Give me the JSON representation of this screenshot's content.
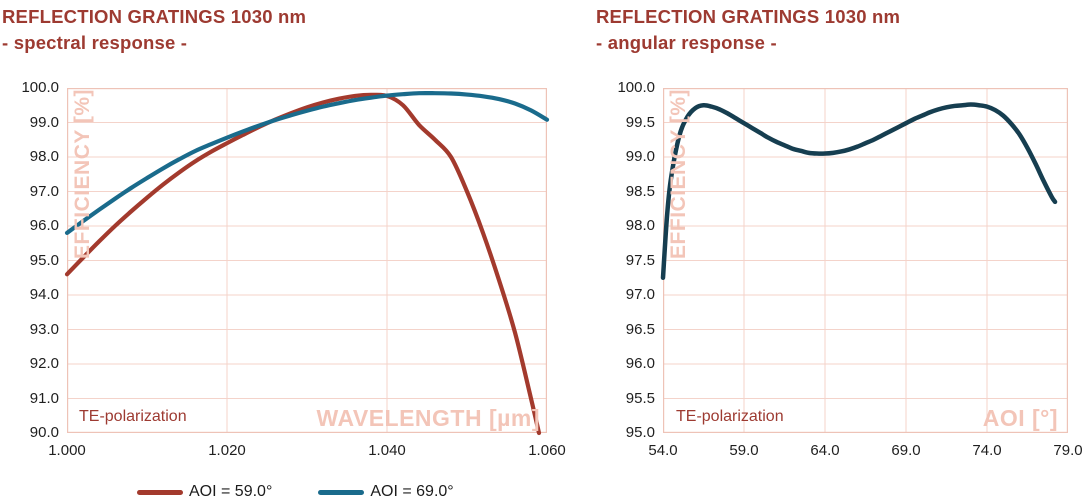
{
  "colors": {
    "background": "#ffffff",
    "title_text": "#9d3a31",
    "axis_tick_text": "#1f1f1f",
    "grid": "#f4d3ca",
    "plot_border": "#eec3b7",
    "watermark_text": "#f3c5b8",
    "annotation_text": "#9d3a31",
    "series_red": "#a33a2d",
    "series_teal": "#1a6b8c",
    "series_navy": "#163e50"
  },
  "chart_data": [
    {
      "type": "line",
      "title": "REFLECTION GRATINGS 1030 nm",
      "subtitle": "- spectral response -",
      "xlabel": "WAVELENGTH [µm]",
      "ylabel": "EFFICIENCY [%]",
      "annotation": "TE-polarization",
      "grid": true,
      "legend_position": "bottom",
      "xlim": [
        1.0,
        1.06
      ],
      "ylim": [
        90.0,
        100.0
      ],
      "xticks": [
        1.0,
        1.02,
        1.04,
        1.06
      ],
      "xtick_labels": [
        "1.000",
        "1.020",
        "1.040",
        "1.060"
      ],
      "yticks": [
        100.0,
        99.0,
        98.0,
        97.0,
        96.0,
        95.0,
        94.0,
        93.0,
        92.0,
        91.0,
        90.0
      ],
      "ytick_labels": [
        "100.0",
        "99.0",
        "98.0",
        "97.0",
        "96.0",
        "95.0",
        "94.0",
        "93.0",
        "92.0",
        "91.0",
        "90.0"
      ],
      "series": [
        {
          "name": "AOI = 59.0°",
          "color": "#a33a2d",
          "x": [
            1.0,
            1.002,
            1.004,
            1.006,
            1.008,
            1.01,
            1.012,
            1.014,
            1.016,
            1.018,
            1.02,
            1.022,
            1.024,
            1.026,
            1.028,
            1.03,
            1.032,
            1.034,
            1.036,
            1.038,
            1.04,
            1.042,
            1.044,
            1.046,
            1.048,
            1.05,
            1.052,
            1.054,
            1.056,
            1.058,
            1.059
          ],
          "y": [
            94.6,
            95.08,
            95.55,
            96.0,
            96.42,
            96.82,
            97.2,
            97.55,
            97.87,
            98.15,
            98.4,
            98.64,
            98.87,
            99.08,
            99.27,
            99.44,
            99.58,
            99.69,
            99.77,
            99.8,
            99.77,
            99.5,
            98.93,
            98.5,
            98.0,
            97.0,
            95.8,
            94.43,
            92.91,
            91.0,
            90.0
          ]
        },
        {
          "name": "AOI = 69.0°",
          "color": "#1a6b8c",
          "x": [
            1.0,
            1.002,
            1.004,
            1.006,
            1.008,
            1.01,
            1.012,
            1.014,
            1.016,
            1.018,
            1.02,
            1.022,
            1.024,
            1.026,
            1.028,
            1.03,
            1.032,
            1.034,
            1.036,
            1.038,
            1.04,
            1.042,
            1.044,
            1.046,
            1.048,
            1.05,
            1.052,
            1.054,
            1.056,
            1.058,
            1.06
          ],
          "y": [
            95.8,
            96.14,
            96.47,
            96.79,
            97.1,
            97.39,
            97.67,
            97.93,
            98.17,
            98.37,
            98.56,
            98.74,
            98.91,
            99.07,
            99.21,
            99.34,
            99.46,
            99.56,
            99.65,
            99.72,
            99.78,
            99.82,
            99.85,
            99.85,
            99.84,
            99.81,
            99.76,
            99.68,
            99.55,
            99.35,
            99.08
          ]
        }
      ]
    },
    {
      "type": "line",
      "title": "REFLECTION GRATINGS 1030 nm",
      "subtitle": "- angular response -",
      "xlabel": "AOI [°]",
      "ylabel": "EFFICIENCY [%]",
      "annotation": "TE-polarization",
      "grid": true,
      "legend_position": "none",
      "xlim": [
        54.0,
        79.0
      ],
      "ylim": [
        95.0,
        100.0
      ],
      "xticks": [
        54.0,
        59.0,
        64.0,
        69.0,
        74.0,
        79.0
      ],
      "xtick_labels": [
        "54.0",
        "59.0",
        "64.0",
        "69.0",
        "74.0",
        "79.0"
      ],
      "yticks": [
        100.0,
        99.5,
        99.0,
        98.5,
        98.0,
        97.5,
        97.0,
        96.5,
        96.0,
        95.5,
        95.0
      ],
      "ytick_labels": [
        "100.0",
        "99.5",
        "99.0",
        "98.5",
        "98.0",
        "97.5",
        "97.0",
        "96.5",
        "96.0",
        "95.5",
        "95.0"
      ],
      "series": [
        {
          "name": "",
          "color": "#163e50",
          "x": [
            54.0,
            54.25,
            54.5,
            55.0,
            55.5,
            56.0,
            56.5,
            57.0,
            57.5,
            58.0,
            58.5,
            59.0,
            59.5,
            60.0,
            60.5,
            61.0,
            61.5,
            62.0,
            62.5,
            63.0,
            63.5,
            64.0,
            64.5,
            65.0,
            65.5,
            66.0,
            66.5,
            67.0,
            67.5,
            68.0,
            68.5,
            69.0,
            69.5,
            70.0,
            70.5,
            71.0,
            71.5,
            72.0,
            72.5,
            73.0,
            73.5,
            74.0,
            74.5,
            75.0,
            75.5,
            76.0,
            76.5,
            77.0,
            77.5,
            78.0,
            78.2
          ],
          "y": [
            97.25,
            98.15,
            98.7,
            99.3,
            99.58,
            99.71,
            99.75,
            99.73,
            99.69,
            99.63,
            99.56,
            99.49,
            99.42,
            99.35,
            99.28,
            99.22,
            99.17,
            99.12,
            99.09,
            99.06,
            99.05,
            99.05,
            99.06,
            99.08,
            99.11,
            99.15,
            99.2,
            99.25,
            99.31,
            99.37,
            99.43,
            99.49,
            99.55,
            99.6,
            99.65,
            99.69,
            99.72,
            99.74,
            99.75,
            99.76,
            99.75,
            99.73,
            99.68,
            99.6,
            99.48,
            99.33,
            99.13,
            98.9,
            98.65,
            98.42,
            98.35
          ]
        }
      ]
    }
  ],
  "legend": {
    "items": [
      {
        "label": "AOI = 59.0°",
        "color": "#a33a2d"
      },
      {
        "label": "AOI = 69.0°",
        "color": "#1a6b8c"
      }
    ]
  }
}
